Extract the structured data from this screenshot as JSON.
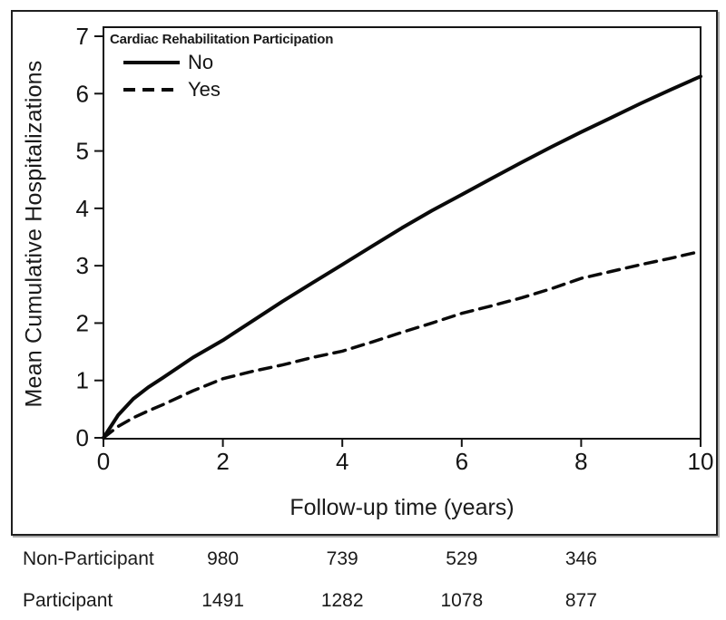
{
  "chart_data": {
    "type": "line",
    "xlabel": "Follow-up time (years)",
    "ylabel": "Mean Cumulative Hospitalizations",
    "xlim": [
      0,
      10
    ],
    "ylim": [
      0,
      7
    ],
    "xticks": [
      0,
      2,
      4,
      6,
      8,
      10
    ],
    "yticks": [
      0,
      1,
      2,
      3,
      4,
      5,
      6,
      7
    ],
    "grid": "off",
    "legend": {
      "position": "top-left-inside",
      "title": "Cardiac Rehabilitation Participation",
      "entries": [
        {
          "label": "No",
          "style": "solid"
        },
        {
          "label": "Yes",
          "style": "dashed"
        }
      ]
    },
    "line_color": "#0a0a0a",
    "series": [
      {
        "name": "No",
        "style": "solid",
        "x": [
          0,
          0.25,
          0.5,
          0.75,
          1,
          1.5,
          2,
          2.5,
          3,
          3.5,
          4,
          4.5,
          5,
          5.5,
          6,
          6.5,
          7,
          7.5,
          8,
          8.5,
          9,
          9.5,
          10
        ],
        "y": [
          0,
          0.4,
          0.68,
          0.88,
          1.05,
          1.4,
          1.7,
          2.04,
          2.38,
          2.7,
          3.02,
          3.34,
          3.66,
          3.96,
          4.24,
          4.52,
          4.8,
          5.07,
          5.33,
          5.58,
          5.83,
          6.07,
          6.3
        ]
      },
      {
        "name": "Yes",
        "style": "dashed",
        "x": [
          0,
          0.25,
          0.5,
          0.75,
          1,
          1.5,
          2,
          2.5,
          3,
          3.5,
          4,
          4.5,
          5,
          5.5,
          6,
          6.5,
          7,
          7.5,
          8,
          8.5,
          9,
          9.5,
          10
        ],
        "y": [
          0,
          0.2,
          0.35,
          0.47,
          0.58,
          0.82,
          1.03,
          1.16,
          1.27,
          1.4,
          1.51,
          1.67,
          1.84,
          2.0,
          2.17,
          2.3,
          2.44,
          2.6,
          2.78,
          2.9,
          3.02,
          3.13,
          3.25
        ]
      }
    ]
  },
  "risk_table": {
    "value_x_years": [
      2,
      4,
      6,
      8
    ],
    "rows": [
      {
        "label": "Non-Participant",
        "values": [
          "980",
          "739",
          "529",
          "346"
        ]
      },
      {
        "label": "Participant",
        "values": [
          "1491",
          "1282",
          "1078",
          "877"
        ]
      }
    ]
  }
}
